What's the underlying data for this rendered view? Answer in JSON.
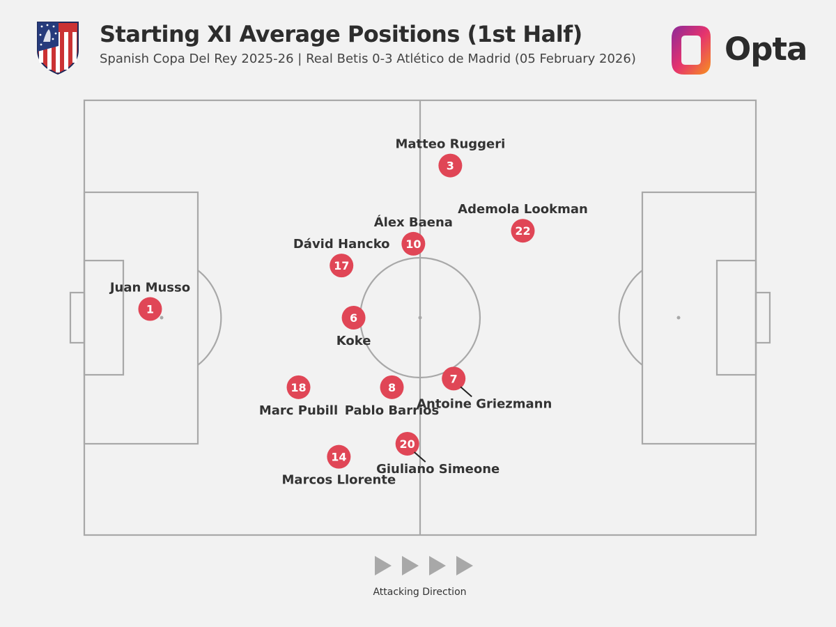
{
  "header": {
    "title": "Starting XI Average Positions (1st Half)",
    "subtitle": "Spanish Copa Del Rey 2025-26 | Real Betis 0-3 Atlético de Madrid (05 February 2026)",
    "crest_icon": "atletico-madrid-crest-icon",
    "brand": "Opta"
  },
  "colors": {
    "marker": "#e04656",
    "line": "#a8a8a8",
    "background": "#f2f2f2",
    "arrow": "#a8a8a8"
  },
  "footer": {
    "attacking_direction_label": "Attacking Direction"
  },
  "chart_data": {
    "type": "scatter",
    "xlim": [
      0,
      100
    ],
    "ylim": [
      0,
      100
    ],
    "title": "Starting XI Average Positions (1st Half)",
    "players": [
      {
        "number": "1",
        "name": "Juan Musso",
        "x": 9.8,
        "y": 52.0,
        "label_pos": "above"
      },
      {
        "number": "3",
        "name": "Matteo Ruggeri",
        "x": 54.5,
        "y": 85.0,
        "label_pos": "above"
      },
      {
        "number": "10",
        "name": "Álex Baena",
        "x": 49.0,
        "y": 67.0,
        "label_pos": "above"
      },
      {
        "number": "22",
        "name": "Ademola Lookman",
        "x": 65.3,
        "y": 70.0,
        "label_pos": "above"
      },
      {
        "number": "17",
        "name": "Dávid Hancko",
        "x": 38.3,
        "y": 62.0,
        "label_pos": "above"
      },
      {
        "number": "6",
        "name": "Koke",
        "x": 40.1,
        "y": 50.0,
        "label_pos": "below"
      },
      {
        "number": "7",
        "name": "Antoine Griezmann",
        "x": 55.0,
        "y": 36.0,
        "label_pos": "below-right"
      },
      {
        "number": "18",
        "name": "Marc Pubill",
        "x": 31.9,
        "y": 34.0,
        "label_pos": "below"
      },
      {
        "number": "8",
        "name": "Pablo Barrios",
        "x": 45.8,
        "y": 34.0,
        "label_pos": "below"
      },
      {
        "number": "20",
        "name": "Giuliano Simeone",
        "x": 48.1,
        "y": 21.0,
        "label_pos": "below-right"
      },
      {
        "number": "14",
        "name": "Marcos Llorente",
        "x": 37.9,
        "y": 18.0,
        "label_pos": "below"
      }
    ]
  }
}
